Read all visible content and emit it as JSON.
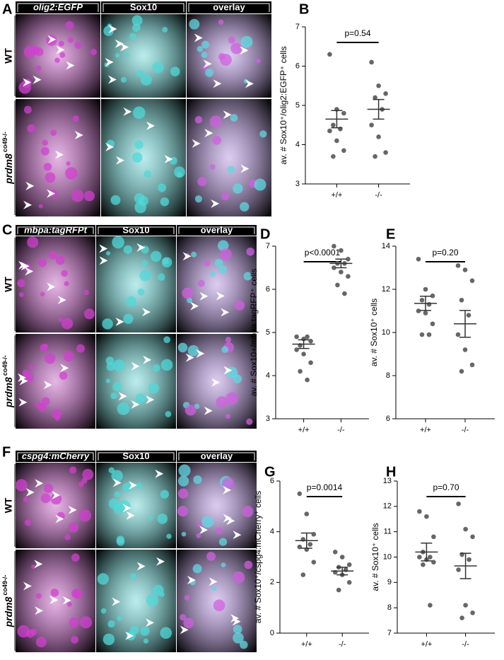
{
  "panel_labels": [
    "A",
    "B",
    "C",
    "D",
    "E",
    "F",
    "G",
    "H"
  ],
  "image_panels": [
    {
      "columns": [
        "olig2:EGFP",
        "Sox10",
        "overlay"
      ],
      "rows": [
        "WT",
        {
          "gene": "prdm8",
          "allele": "co49-/-"
        }
      ]
    },
    {
      "columns": [
        "mbpa:tagRFPt",
        "Sox10",
        "overlay"
      ],
      "rows": [
        "WT",
        {
          "gene": "prdm8",
          "allele": "co49-/-"
        }
      ]
    },
    {
      "columns": [
        "cspg4:mCherry",
        "Sox10",
        "overlay"
      ],
      "rows": [
        "WT",
        {
          "gene": "prdm8",
          "allele": "co49-/-"
        }
      ]
    }
  ],
  "chart_data": [
    {
      "type": "dotplot",
      "y_label": "av. # Sox10⁺/olig2:EGFP⁺ cells",
      "annotation": "p=0.54",
      "color": "#666666",
      "categories": [
        "+/+",
        "-/-"
      ],
      "groups": [
        {
          "values": [
            6.3,
            4.9,
            4.8,
            4.5,
            4.4,
            4.35,
            4.1,
            3.85,
            3.7
          ],
          "mean": 4.65,
          "sem": 0.22
        },
        {
          "values": [
            6.1,
            5.5,
            5.3,
            5.2,
            4.9,
            4.5,
            4.2,
            3.8,
            3.7
          ],
          "mean": 4.9,
          "sem": 0.25
        }
      ],
      "ylim": [
        3,
        7
      ],
      "yticks": [
        3,
        4,
        5,
        6,
        7
      ]
    },
    {
      "type": "dotplot",
      "y_label": "av. # Sox10+/mbpa:tagRFP⁺ cells",
      "annotation": "p<0.0001",
      "color": "#666666",
      "categories": [
        "+/+",
        "-/-"
      ],
      "groups": [
        {
          "values": [
            4.9,
            4.85,
            4.8,
            4.7,
            4.9,
            4.6,
            4.5,
            4.3,
            4.1,
            3.9
          ],
          "mean": 4.73,
          "sem": 0.1
        },
        {
          "values": [
            7.0,
            6.9,
            6.7,
            6.6,
            6.6,
            6.5,
            6.4,
            6.3,
            6.1,
            5.9
          ],
          "mean": 6.6,
          "sem": 0.1
        }
      ],
      "ylim": [
        3,
        7
      ],
      "yticks": [
        3,
        4,
        5,
        6,
        7
      ]
    },
    {
      "type": "dotplot",
      "y_label": "av. # Sox10⁺ cells",
      "annotation": "p=0.20",
      "color": "#666666",
      "categories": [
        "+/+",
        "-/-"
      ],
      "groups": [
        {
          "values": [
            13.4,
            12.0,
            11.7,
            11.5,
            11.3,
            11.0,
            10.9,
            10.4,
            9.9,
            9.9
          ],
          "mean": 11.35,
          "sem": 0.33
        },
        {
          "values": [
            13.1,
            12.9,
            12.4,
            11.5,
            10.8,
            9.9,
            9.2,
            8.5,
            8.2
          ],
          "mean": 10.4,
          "sem": 0.62
        }
      ],
      "ylim": [
        6,
        14
      ],
      "yticks": [
        6,
        8,
        10,
        12,
        14
      ]
    },
    {
      "type": "dotplot",
      "y_label": "av. # Sox10⁺/cspg4:mCherry⁺ cells",
      "annotation": "p=0.0014",
      "color": "#666666",
      "categories": [
        "+/+",
        "-/-"
      ],
      "groups": [
        {
          "values": [
            5.5,
            4.7,
            3.9,
            3.7,
            3.5,
            3.4,
            3.3,
            2.8,
            2.3
          ],
          "mean": 3.65,
          "sem": 0.3
        },
        {
          "values": [
            3.2,
            3.0,
            2.7,
            2.6,
            2.5,
            2.4,
            2.3,
            2.0,
            1.7
          ],
          "mean": 2.45,
          "sem": 0.15
        }
      ],
      "ylim": [
        0,
        6
      ],
      "yticks": [
        0,
        2,
        4,
        6
      ]
    },
    {
      "type": "dotplot",
      "y_label": "av. # Sox10⁺ cells",
      "annotation": "p=0.70",
      "color": "#666666",
      "categories": [
        "+/+",
        "-/-"
      ],
      "groups": [
        {
          "values": [
            11.8,
            11.6,
            10.8,
            10.2,
            10.0,
            10.0,
            9.9,
            9.8,
            9.7,
            8.1
          ],
          "mean": 10.2,
          "sem": 0.35
        },
        {
          "values": [
            12.1,
            11.1,
            10.8,
            10.1,
            9.9,
            9.5,
            8.1,
            7.8,
            7.6
          ],
          "mean": 9.65,
          "sem": 0.5
        }
      ],
      "ylim": [
        7,
        13
      ],
      "yticks": [
        7,
        8,
        9,
        10,
        11,
        12,
        13
      ]
    }
  ]
}
